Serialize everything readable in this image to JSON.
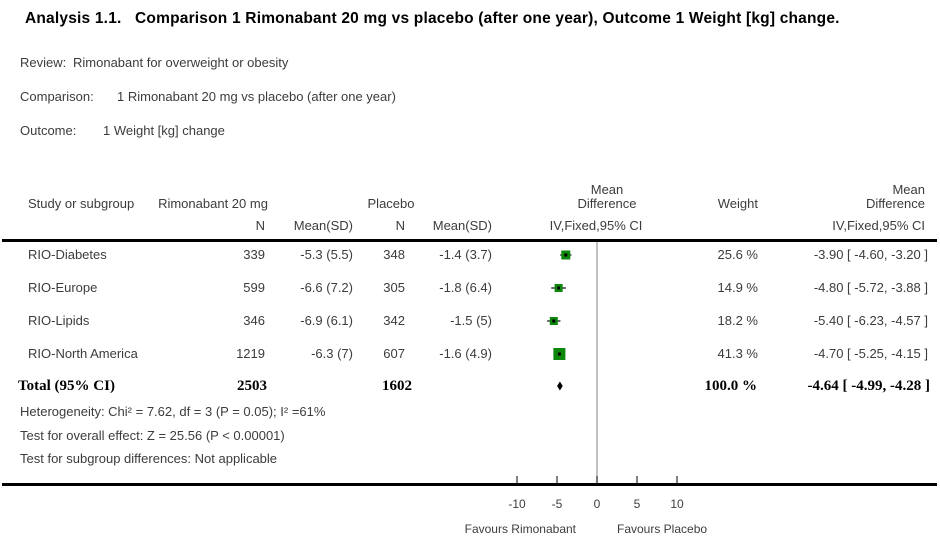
{
  "title": "Analysis 1.1.   Comparison 1 Rimonabant 20 mg vs placebo (after one year), Outcome 1 Weight [kg] change.",
  "meta": {
    "review_label": "Review:",
    "review_value": "Rimonabant for overweight or obesity",
    "comparison_label": "Comparison:",
    "comparison_value": "1 Rimonabant 20 mg vs placebo (after one year)",
    "outcome_label": "Outcome:",
    "outcome_value": "1 Weight [kg] change"
  },
  "table": {
    "headers": {
      "study": "Study or subgroup",
      "group1": "Rimonabant 20 mg",
      "group2": "Placebo",
      "n": "N",
      "mean_sd": "Mean(SD)",
      "md_line1": "Mean",
      "md_line2": "Difference",
      "iv_fixed": "IV,Fixed,95% CI",
      "weight": "Weight"
    },
    "rows": [
      {
        "study": "RIO-Diabetes",
        "n1": "339",
        "mean1": "-5.3 (5.5)",
        "n2": "348",
        "mean2": "-1.4 (3.7)",
        "weight": "25.6 %",
        "md_ci": "-3.90 [ -4.60, -3.20 ]"
      },
      {
        "study": "RIO-Europe",
        "n1": "599",
        "mean1": "-6.6 (7.2)",
        "n2": "305",
        "mean2": "-1.8 (6.4)",
        "weight": "14.9 %",
        "md_ci": "-4.80 [ -5.72, -3.88 ]"
      },
      {
        "study": "RIO-Lipids",
        "n1": "346",
        "mean1": "-6.9 (6.1)",
        "n2": "342",
        "mean2": "-1.5 (5)",
        "weight": "18.2 %",
        "md_ci": "-5.40 [ -6.23, -4.57 ]"
      },
      {
        "study": "RIO-North America",
        "n1": "1219",
        "mean1": "-6.3 (7)",
        "n2": "607",
        "mean2": "-1.6 (4.9)",
        "weight": "41.3 %",
        "md_ci": "-4.70 [ -5.25, -4.15 ]"
      }
    ],
    "total": {
      "label": "Total (95% CI)",
      "n1": "2503",
      "n2": "1602",
      "weight": "100.0 %",
      "md_ci": "-4.64 [ -4.99, -4.28 ]"
    }
  },
  "stats": {
    "heterogeneity": "Heterogeneity: Chi² = 7.62, df = 3 (P = 0.05); I² =61%",
    "overall_effect": "Test for overall effect: Z = 25.56 (P < 0.00001)",
    "subgroup": "Test for subgroup differences: Not applicable"
  },
  "chart_data": {
    "type": "forest",
    "title": "Comparison 1 Rimonabant 20 mg vs placebo (after one year), Outcome 1 Weight [kg] change",
    "effect_measure": "Mean Difference, IV,Fixed,95% CI",
    "axis": {
      "ticks": [
        -10,
        -5,
        0,
        5,
        10
      ],
      "favours_left": "Favours Rimonabant",
      "favours_right": "Favours Placebo"
    },
    "studies": [
      {
        "name": "RIO-Diabetes",
        "md": -3.9,
        "ci_low": -4.6,
        "ci_high": -3.2,
        "weight_pct": 25.6
      },
      {
        "name": "RIO-Europe",
        "md": -4.8,
        "ci_low": -5.72,
        "ci_high": -3.88,
        "weight_pct": 14.9
      },
      {
        "name": "RIO-Lipids",
        "md": -5.4,
        "ci_low": -6.23,
        "ci_high": -4.57,
        "weight_pct": 18.2
      },
      {
        "name": "RIO-North America",
        "md": -4.7,
        "ci_low": -5.25,
        "ci_high": -4.15,
        "weight_pct": 41.3
      }
    ],
    "total": {
      "md": -4.64,
      "ci_low": -4.99,
      "ci_high": -4.28,
      "weight_pct": 100.0
    },
    "marker_color": "#0c870c",
    "ci_line_color": "#1a1a1a",
    "zero_line_color": "#999999",
    "axis_color": "#000000",
    "label_color": "#3d3d3d"
  }
}
